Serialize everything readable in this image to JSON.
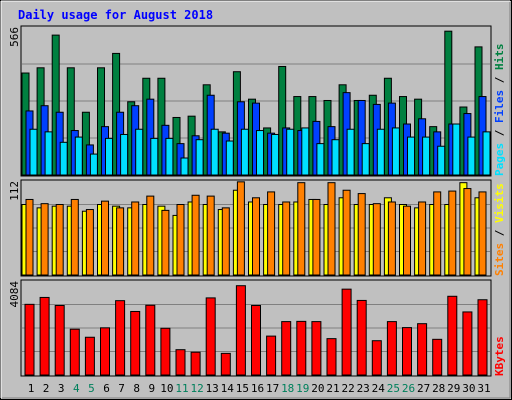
{
  "title": "Daily usage for August 2018",
  "colors": {
    "background": "#c0c0c0",
    "title": "#0000ff",
    "hits": "#008040",
    "files": "#0040ff",
    "pages": "#00e0ff",
    "visits": "#ffff00",
    "sites": "#ff8000",
    "kbytes": "#ff0000",
    "weekend_day_label": "#00805c",
    "weekday_label": "#000080"
  },
  "legends": {
    "top": {
      "pages": "Pages",
      "sep1": " / ",
      "files": "Files",
      "sep2": " / ",
      "hits": "Hits"
    },
    "middle": {
      "sites": "Sites",
      "sep": " / ",
      "visits": "Visits"
    },
    "bottom": {
      "kbytes": "KBytes"
    }
  },
  "chart_data": [
    {
      "type": "bar",
      "panel": "hits-files-pages",
      "ymax_label": "566",
      "ylim": [
        0,
        566
      ],
      "categories": [
        "1",
        "2",
        "3",
        "4",
        "5",
        "6",
        "7",
        "8",
        "9",
        "10",
        "11",
        "12",
        "13",
        "14",
        "15",
        "16",
        "17",
        "18",
        "19",
        "20",
        "21",
        "22",
        "23",
        "24",
        "25",
        "26",
        "27",
        "28",
        "29",
        "30",
        "31"
      ],
      "series": [
        {
          "name": "Hits",
          "values": [
            390,
            410,
            535,
            410,
            240,
            410,
            465,
            280,
            370,
            370,
            220,
            225,
            345,
            165,
            395,
            290,
            180,
            415,
            300,
            300,
            285,
            345,
            285,
            305,
            370,
            300,
            290,
            185,
            550,
            260,
            490
          ]
        },
        {
          "name": "Files",
          "values": [
            245,
            265,
            240,
            170,
            115,
            185,
            240,
            265,
            290,
            190,
            120,
            150,
            305,
            160,
            280,
            275,
            160,
            180,
            170,
            205,
            185,
            315,
            285,
            270,
            275,
            195,
            215,
            165,
            195,
            235,
            300
          ]
        },
        {
          "name": "Pages",
          "values": [
            175,
            165,
            125,
            145,
            80,
            140,
            155,
            175,
            140,
            140,
            65,
            135,
            175,
            130,
            175,
            170,
            155,
            175,
            180,
            120,
            135,
            175,
            120,
            175,
            180,
            145,
            145,
            110,
            195,
            145,
            165
          ]
        }
      ]
    },
    {
      "type": "bar",
      "panel": "visits-sites",
      "ymax_label": "112",
      "ylim": [
        0,
        112
      ],
      "categories": [
        "1",
        "2",
        "3",
        "4",
        "5",
        "6",
        "7",
        "8",
        "9",
        "10",
        "11",
        "12",
        "13",
        "14",
        "15",
        "16",
        "17",
        "18",
        "19",
        "20",
        "21",
        "22",
        "23",
        "24",
        "25",
        "26",
        "27",
        "28",
        "29",
        "30",
        "31"
      ],
      "series": [
        {
          "name": "Visits",
          "values": [
            84,
            80,
            82,
            82,
            76,
            84,
            82,
            80,
            84,
            82,
            71,
            87,
            84,
            78,
            101,
            87,
            84,
            84,
            87,
            90,
            84,
            92,
            84,
            84,
            92,
            84,
            80,
            84,
            84,
            110,
            92
          ]
        },
        {
          "name": "Sites",
          "values": [
            90,
            85,
            84,
            90,
            78,
            88,
            80,
            87,
            94,
            77,
            84,
            95,
            94,
            80,
            111,
            92,
            99,
            87,
            110,
            90,
            110,
            101,
            97,
            85,
            87,
            82,
            87,
            99,
            100,
            103,
            99
          ]
        }
      ]
    },
    {
      "type": "bar",
      "panel": "kbytes",
      "ymax_label": "4084",
      "ylim": [
        0,
        4084
      ],
      "categories": [
        "1",
        "2",
        "3",
        "4",
        "5",
        "6",
        "7",
        "8",
        "9",
        "10",
        "11",
        "12",
        "13",
        "14",
        "15",
        "16",
        "17",
        "18",
        "19",
        "20",
        "21",
        "22",
        "23",
        "24",
        "25",
        "26",
        "27",
        "28",
        "29",
        "30",
        "31"
      ],
      "series": [
        {
          "name": "KBytes",
          "values": [
            3070,
            3370,
            3020,
            1990,
            1640,
            2050,
            3230,
            2760,
            3030,
            2030,
            1100,
            990,
            3350,
            940,
            3880,
            3020,
            1690,
            2320,
            2330,
            2320,
            1580,
            3730,
            3240,
            1490,
            2320,
            2060,
            2230,
            1550,
            3420,
            2740,
            3270
          ]
        }
      ]
    }
  ]
}
